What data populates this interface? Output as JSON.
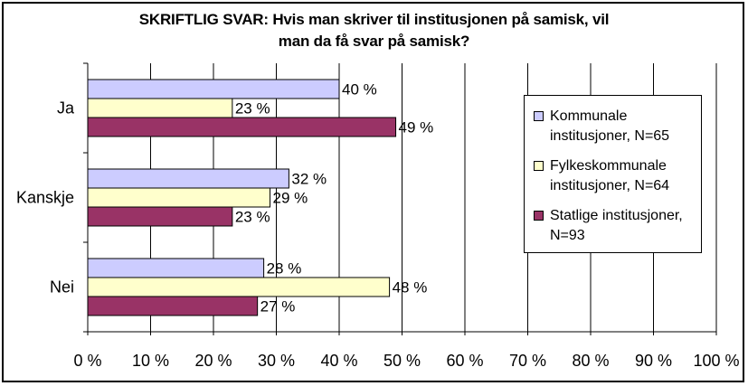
{
  "chart_data": {
    "type": "bar",
    "orientation": "horizontal",
    "title_lines": [
      "SKRIFTLIG SVAR: Hvis man skriver til institusjonen på samisk, vil",
      "man da få svar på samisk?"
    ],
    "categories": [
      "Ja",
      "Kanskje",
      "Nei"
    ],
    "series": [
      {
        "name": "Kommunale institusjoner, N=65",
        "legend_lines": [
          "Kommunale",
          "institusjoner, N=65"
        ],
        "color": "#ccccff",
        "values": [
          40,
          32,
          28
        ]
      },
      {
        "name": "Fylkeskommunale institusjoner, N=64",
        "legend_lines": [
          "Fylkeskommunale",
          "institusjoner, N=64"
        ],
        "color": "#ffffcc",
        "values": [
          23,
          29,
          48
        ]
      },
      {
        "name": "Statlige institusjoner, N=93",
        "legend_lines": [
          "Statlige institusjoner,",
          "N=93"
        ],
        "color": "#993366",
        "values": [
          49,
          23,
          27
        ]
      }
    ],
    "value_suffix": " %",
    "xlim": [
      0,
      100
    ],
    "xticks": [
      0,
      10,
      20,
      30,
      40,
      50,
      60,
      70,
      80,
      90,
      100
    ],
    "xtick_labels": [
      "0 %",
      "10 %",
      "20 %",
      "30 %",
      "40 %",
      "50 %",
      "60 %",
      "70 %",
      "80 %",
      "90 %",
      "100 %"
    ],
    "grid": true,
    "legend_position": "right"
  }
}
